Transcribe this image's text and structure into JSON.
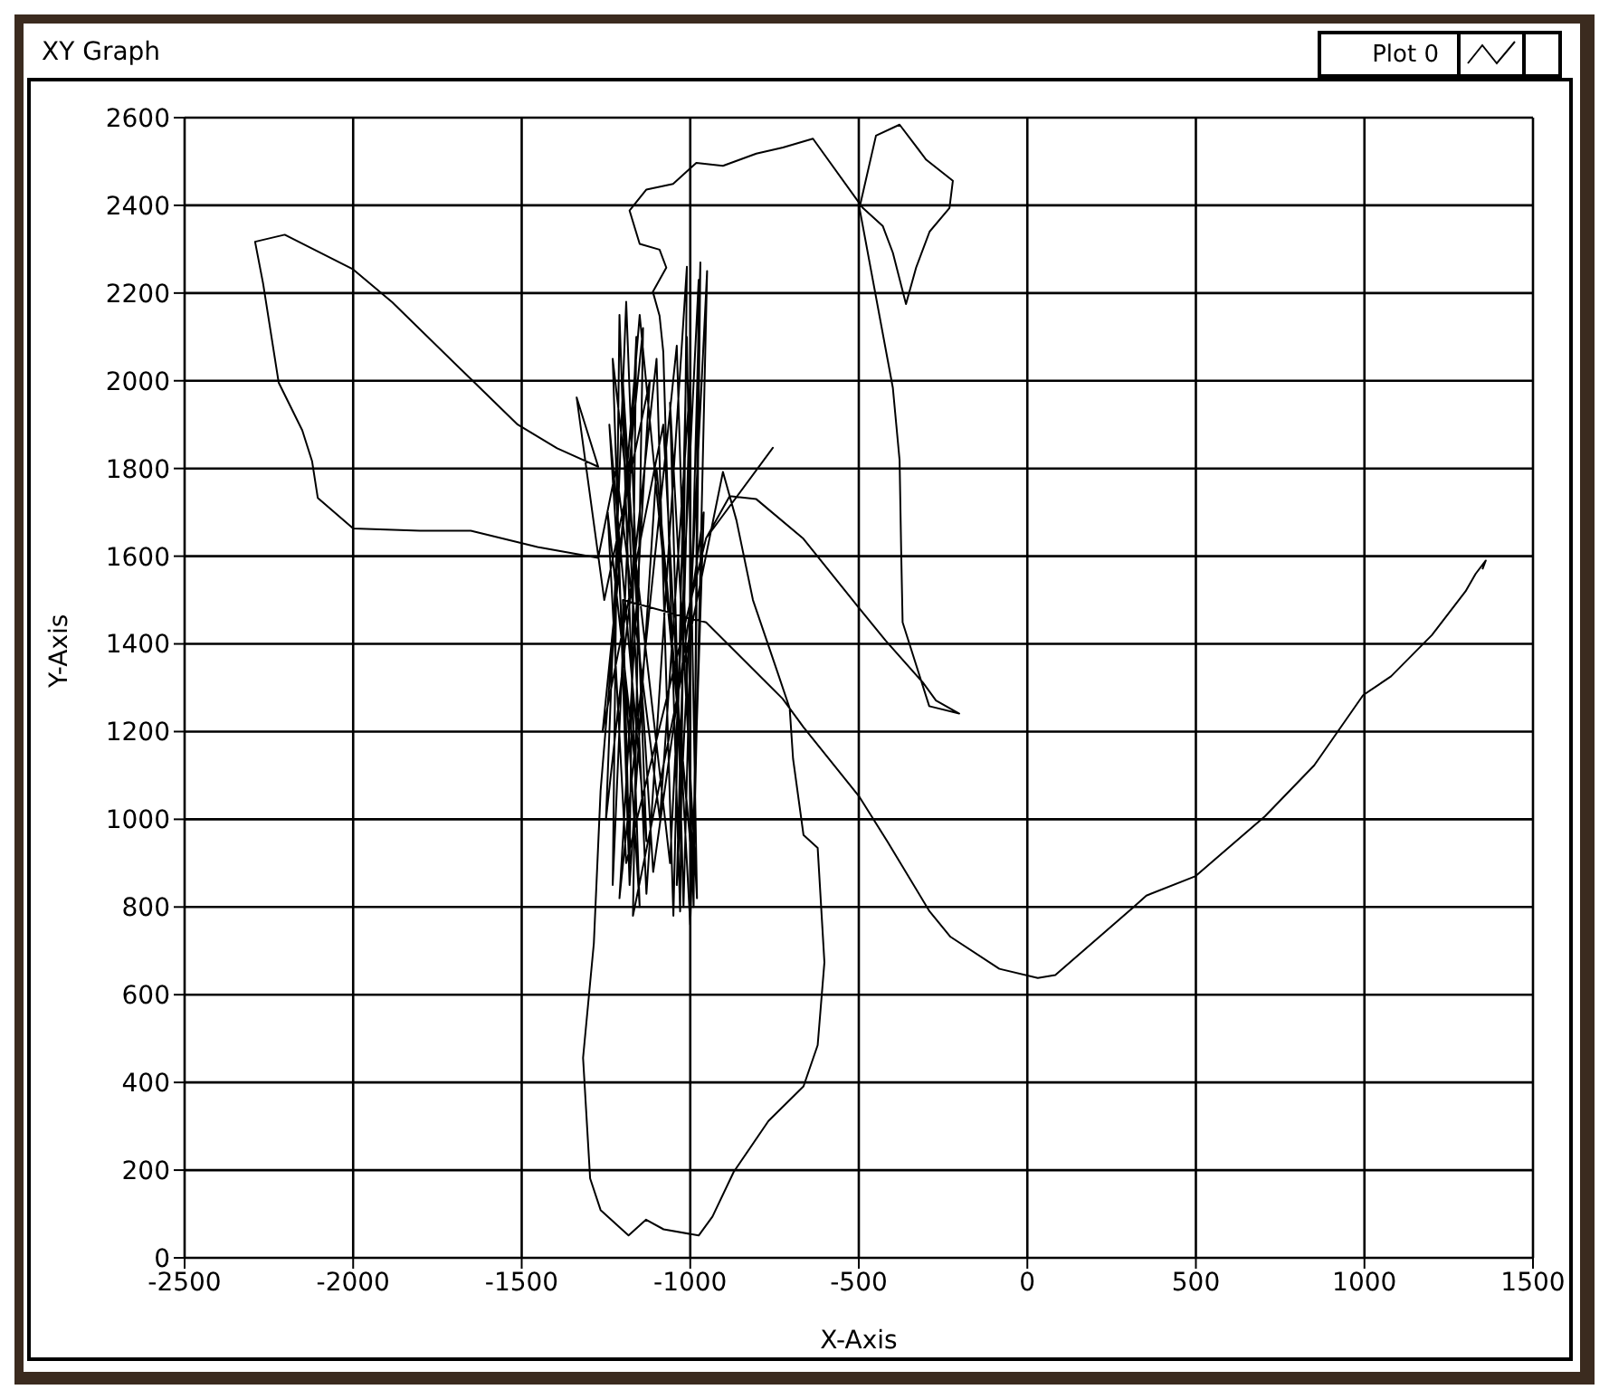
{
  "chart_data": {
    "type": "line",
    "title": "XY Graph",
    "xlabel": "X-Axis",
    "ylabel": "Y-Axis",
    "xlim": [
      -2500,
      1500
    ],
    "xticks": [
      -2500,
      -2000,
      -1500,
      -1000,
      -500,
      0,
      500,
      1000,
      1500
    ],
    "ylim": [
      0,
      2600
    ],
    "yticks": [
      0,
      200,
      400,
      600,
      800,
      1000,
      1200,
      1400,
      1600,
      1800,
      2000,
      2200,
      2400,
      2600
    ],
    "grid": true,
    "legend": "top right",
    "marker": "none",
    "line_style": "solid",
    "series": [
      {
        "name": "Plot 0",
        "color": "#000000",
        "x": [
          1350,
          1360,
          1330,
          1300,
          1200,
          1079,
          996,
          851,
          705,
          498,
          353,
          311,
          83,
          31,
          -83,
          -228,
          -290,
          -415,
          -498,
          -664,
          -726,
          -953,
          -1200,
          -1180,
          -1160,
          -1230,
          -1210,
          -1150,
          -1240,
          -1130,
          -1190,
          -1250,
          -1100,
          -1050,
          -1010,
          -980,
          -1060,
          -1020,
          -970,
          -990,
          -950,
          -1040,
          -1000,
          -1090,
          -1220,
          -1273,
          -1453,
          -1651,
          -1802,
          -2000,
          -2105,
          -2122,
          -2151,
          -2221,
          -2267,
          -2291,
          -2203,
          -2000,
          -1884,
          -1651,
          -1512,
          -1395,
          -1273,
          -1337,
          -1255,
          -1120,
          -1210,
          -1040,
          -990,
          -975,
          -1060,
          -1230,
          -1180,
          -1100,
          -1000,
          -1150,
          -1266,
          -1286,
          -1318,
          -1297,
          -1266,
          -1183,
          -1131,
          -1079,
          -975,
          -934,
          -871,
          -768,
          -664,
          -622,
          -602,
          -622,
          -664,
          -695,
          -705,
          -737,
          -814,
          -863,
          -903,
          -1170,
          -1140,
          -1260,
          -1080,
          -1000,
          -960,
          -1110,
          -1200,
          -1130,
          -1010,
          -1030,
          -1080,
          -1091,
          -1111,
          -1071,
          -1091,
          -1150,
          -1180,
          -1130,
          -1051,
          -982,
          -903,
          -804,
          -725,
          -636,
          -488,
          -429,
          -399,
          -360,
          -330,
          -290,
          -231,
          -221,
          -300,
          -379,
          -449,
          -498,
          -399,
          -379,
          -374,
          -370,
          -291,
          -202,
          -271,
          -310,
          -421,
          -508,
          -666,
          -804,
          -883,
          -953,
          -755,
          -953,
          -1190,
          -1245,
          -1160
        ],
        "values": [
          1570,
          1590,
          1560,
          1520,
          1420,
          1326,
          1283,
          1123,
          1007,
          870,
          826,
          797,
          645,
          638,
          659,
          732,
          790,
          949,
          1051,
          1210,
          1275,
          1449,
          1500,
          900,
          2100,
          850,
          2150,
          800,
          1900,
          950,
          2180,
          1000,
          2050,
          780,
          2100,
          820,
          1950,
          800,
          2270,
          900,
          2250,
          850,
          2000,
          1000,
          1800,
          1596,
          1621,
          1658,
          1658,
          1663,
          1733,
          1817,
          1887,
          1996,
          2221,
          2317,
          2333,
          2254,
          2179,
          2004,
          1900,
          1846,
          1804,
          1962,
          1500,
          2000,
          820,
          2080,
          800,
          2230,
          900,
          2050,
          850,
          1800,
          950,
          2150,
          1065,
          717,
          456,
          181,
          109,
          51,
          87,
          65,
          51,
          94,
          196,
          312,
          391,
          485,
          674,
          935,
          964,
          1138,
          1253,
          1326,
          1500,
          1682,
          1792,
          780,
          2120,
          1200,
          1900,
          760,
          1700,
          880,
          2000,
          830,
          2260,
          790,
          2066,
          2148,
          2203,
          2258,
          2299,
          2312,
          2388,
          2436,
          2449,
          2497,
          2490,
          2518,
          2532,
          2552,
          2394,
          2353,
          2292,
          2175,
          2258,
          2340,
          2394,
          2456,
          2504,
          2584,
          2559,
          2394,
          1984,
          1819,
          1600,
          1449,
          1258,
          1241,
          1271,
          1312,
          1408,
          1490,
          1641,
          1730,
          1737,
          1641,
          1847,
          1641,
          900,
          1700,
          1100
        ]
      }
    ]
  }
}
